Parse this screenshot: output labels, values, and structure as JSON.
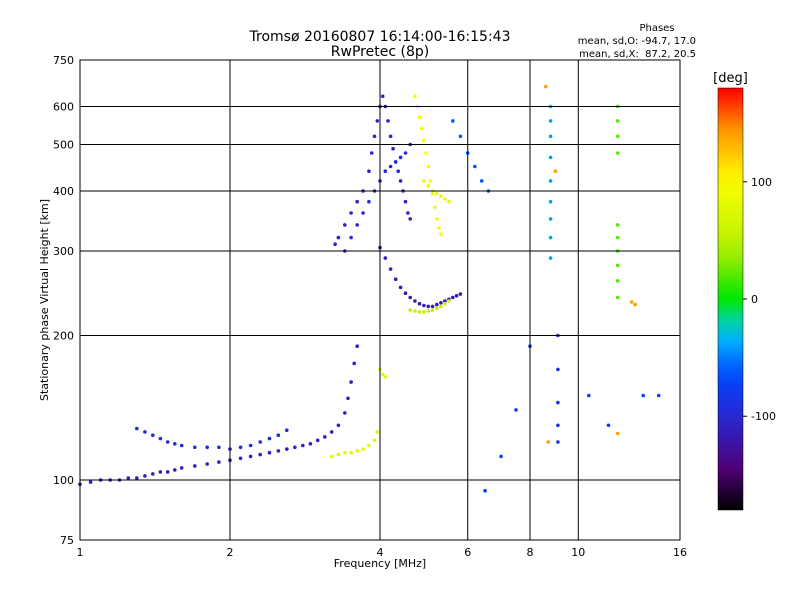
{
  "chart_data": {
    "type": "scatter",
    "title": "Tromsø 20160807 16:14:00-16:15:43",
    "subtitle": "RwPretec (8p)",
    "phase_box": {
      "heading": "Phases",
      "line1": "mean, sd,O: -94.7, 17.0",
      "line2": "mean, sd,X:  87.2, 20.5"
    },
    "xlabel": "Frequency [MHz]",
    "ylabel": "Stationary phase Virtual Height [km]",
    "x_scale": "log",
    "y_scale": "log",
    "xlim": [
      1,
      16
    ],
    "ylim": [
      75,
      750
    ],
    "x_ticks": [
      {
        "value": 1,
        "label": "1"
      },
      {
        "value": 2,
        "label": "2"
      },
      {
        "value": 4,
        "label": "4"
      },
      {
        "value": 6,
        "label": "6"
      },
      {
        "value": 8,
        "label": "8"
      },
      {
        "value": 10,
        "label": "10"
      },
      {
        "value": 16,
        "label": "16"
      }
    ],
    "y_ticks": [
      {
        "value": 75,
        "label": "75"
      },
      {
        "value": 100,
        "label": "100"
      },
      {
        "value": 200,
        "label": "200"
      },
      {
        "value": 300,
        "label": "300"
      },
      {
        "value": 400,
        "label": "400"
      },
      {
        "value": 500,
        "label": "500"
      },
      {
        "value": 600,
        "label": "600"
      },
      {
        "value": 750,
        "label": "750"
      }
    ],
    "grid": true,
    "colorbar": {
      "label": "[deg]",
      "range": [
        -180,
        180
      ],
      "ticks": [
        {
          "value": 100,
          "label": "100"
        },
        {
          "value": 0,
          "label": "0"
        },
        {
          "value": -100,
          "label": "-100"
        }
      ]
    },
    "traces": [
      {
        "name": "",
        "phase": -110,
        "points": [
          [
            1.0,
            98
          ],
          [
            1.05,
            99
          ],
          [
            1.1,
            100
          ],
          [
            1.15,
            100
          ],
          [
            1.2,
            100
          ],
          [
            1.25,
            101
          ],
          [
            1.3,
            101
          ],
          [
            1.35,
            102
          ],
          [
            1.4,
            103
          ],
          [
            1.45,
            104
          ],
          [
            1.5,
            104
          ],
          [
            1.55,
            105
          ],
          [
            1.6,
            106
          ],
          [
            1.7,
            107
          ],
          [
            1.8,
            108
          ],
          [
            1.9,
            109
          ],
          [
            2.0,
            110
          ],
          [
            2.1,
            111
          ],
          [
            2.2,
            112
          ],
          [
            2.3,
            113
          ],
          [
            2.4,
            114
          ],
          [
            2.5,
            115
          ],
          [
            2.6,
            116
          ],
          [
            2.7,
            117
          ],
          [
            2.8,
            118
          ],
          [
            2.9,
            119
          ],
          [
            3.0,
            121
          ],
          [
            3.1,
            123
          ],
          [
            3.2,
            126
          ],
          [
            3.3,
            130
          ],
          [
            3.4,
            138
          ],
          [
            3.45,
            148
          ],
          [
            3.5,
            160
          ],
          [
            3.55,
            175
          ],
          [
            3.6,
            190
          ]
        ]
      },
      {
        "name": "",
        "phase": -95,
        "points": [
          [
            1.3,
            128
          ],
          [
            1.35,
            126
          ],
          [
            1.4,
            124
          ],
          [
            1.45,
            122
          ],
          [
            1.5,
            120
          ],
          [
            1.55,
            119
          ],
          [
            1.6,
            118
          ],
          [
            1.7,
            117
          ],
          [
            1.8,
            117
          ],
          [
            1.9,
            117
          ],
          [
            2.0,
            116
          ],
          [
            2.1,
            117
          ],
          [
            2.2,
            118
          ],
          [
            2.3,
            120
          ],
          [
            2.4,
            122
          ],
          [
            2.5,
            124
          ],
          [
            2.6,
            127
          ]
        ]
      },
      {
        "name": "",
        "phase": 80,
        "points": [
          [
            3.2,
            112
          ],
          [
            3.3,
            113
          ],
          [
            3.4,
            114
          ],
          [
            3.5,
            114
          ],
          [
            3.6,
            115
          ],
          [
            3.7,
            116
          ],
          [
            3.8,
            118
          ],
          [
            3.9,
            121
          ],
          [
            3.95,
            126
          ],
          [
            4.0,
            170
          ],
          [
            4.05,
            166
          ],
          [
            4.1,
            164
          ]
        ]
      },
      {
        "name": "",
        "phase": -105,
        "points": [
          [
            3.25,
            310
          ],
          [
            3.3,
            320
          ],
          [
            3.4,
            340
          ],
          [
            3.5,
            360
          ],
          [
            3.6,
            380
          ],
          [
            3.7,
            400
          ],
          [
            3.8,
            440
          ],
          [
            3.85,
            480
          ],
          [
            3.9,
            520
          ],
          [
            3.95,
            560
          ],
          [
            4.0,
            600
          ],
          [
            4.05,
            630
          ],
          [
            4.1,
            600
          ],
          [
            4.15,
            560
          ],
          [
            4.2,
            520
          ],
          [
            4.25,
            490
          ],
          [
            4.3,
            460
          ],
          [
            4.35,
            440
          ],
          [
            4.4,
            420
          ],
          [
            4.45,
            400
          ],
          [
            4.5,
            380
          ],
          [
            4.55,
            360
          ],
          [
            4.6,
            350
          ]
        ]
      },
      {
        "name": "",
        "phase": -100,
        "points": [
          [
            3.4,
            300
          ],
          [
            3.5,
            320
          ],
          [
            3.6,
            340
          ],
          [
            3.7,
            360
          ],
          [
            3.8,
            380
          ],
          [
            3.9,
            400
          ],
          [
            4.0,
            420
          ],
          [
            4.1,
            440
          ],
          [
            4.2,
            450
          ],
          [
            4.3,
            460
          ],
          [
            4.4,
            470
          ],
          [
            4.5,
            480
          ],
          [
            4.6,
            500
          ]
        ]
      },
      {
        "name": "",
        "phase": -115,
        "points": [
          [
            4.0,
            305
          ],
          [
            4.1,
            290
          ],
          [
            4.2,
            275
          ],
          [
            4.3,
            262
          ],
          [
            4.4,
            252
          ],
          [
            4.5,
            245
          ],
          [
            4.6,
            240
          ],
          [
            4.7,
            236
          ],
          [
            4.8,
            233
          ],
          [
            4.9,
            231
          ],
          [
            5.0,
            230
          ],
          [
            5.1,
            230
          ],
          [
            5.2,
            232
          ],
          [
            5.3,
            234
          ],
          [
            5.4,
            236
          ],
          [
            5.5,
            238
          ],
          [
            5.6,
            240
          ],
          [
            5.7,
            242
          ],
          [
            5.8,
            244
          ]
        ]
      },
      {
        "name": "",
        "phase": 55,
        "points": [
          [
            4.6,
            226
          ],
          [
            4.7,
            225
          ],
          [
            4.8,
            224
          ],
          [
            4.9,
            224
          ],
          [
            5.0,
            225
          ],
          [
            5.1,
            226
          ],
          [
            5.2,
            228
          ],
          [
            5.3,
            230
          ],
          [
            5.4,
            233
          ],
          [
            5.5,
            236
          ]
        ]
      },
      {
        "name": "",
        "phase": 95,
        "points": [
          [
            4.7,
            630
          ],
          [
            4.75,
            600
          ],
          [
            4.8,
            570
          ],
          [
            4.85,
            540
          ],
          [
            4.9,
            510
          ],
          [
            4.95,
            480
          ],
          [
            5.0,
            450
          ],
          [
            5.05,
            420
          ],
          [
            5.1,
            395
          ],
          [
            5.15,
            370
          ],
          [
            5.2,
            350
          ],
          [
            5.25,
            335
          ],
          [
            5.3,
            325
          ]
        ]
      },
      {
        "name": "",
        "phase": 85,
        "points": [
          [
            4.9,
            420
          ],
          [
            5.0,
            410
          ],
          [
            5.1,
            400
          ],
          [
            5.2,
            395
          ],
          [
            5.3,
            390
          ],
          [
            5.4,
            385
          ],
          [
            5.5,
            380
          ]
        ]
      },
      {
        "name": "",
        "phase": -60,
        "points": [
          [
            5.6,
            560
          ],
          [
            5.8,
            520
          ],
          [
            6.0,
            480
          ],
          [
            6.2,
            450
          ],
          [
            6.4,
            420
          ],
          [
            6.6,
            400
          ]
        ]
      },
      {
        "name": "",
        "phase": -40,
        "points": [
          [
            8.8,
            600
          ],
          [
            8.8,
            560
          ],
          [
            8.8,
            520
          ],
          [
            8.8,
            470
          ],
          [
            8.8,
            420
          ],
          [
            8.8,
            380
          ],
          [
            8.8,
            350
          ],
          [
            8.8,
            320
          ],
          [
            8.8,
            290
          ]
        ]
      },
      {
        "name": "",
        "phase": -90,
        "points": [
          [
            9.1,
            200
          ],
          [
            9.1,
            170
          ],
          [
            9.1,
            145
          ],
          [
            9.1,
            130
          ],
          [
            9.1,
            120
          ]
        ]
      },
      {
        "name": "",
        "phase": 20,
        "points": [
          [
            12.0,
            600
          ],
          [
            12.0,
            560
          ],
          [
            12.0,
            520
          ],
          [
            12.0,
            480
          ],
          [
            12.0,
            340
          ],
          [
            12.0,
            320
          ],
          [
            12.0,
            300
          ],
          [
            12.0,
            280
          ],
          [
            12.0,
            260
          ],
          [
            12.0,
            240
          ]
        ]
      },
      {
        "name": "",
        "phase": -75,
        "points": [
          [
            6.5,
            95
          ],
          [
            7.0,
            112
          ],
          [
            7.5,
            140
          ],
          [
            8.0,
            190
          ],
          [
            10.5,
            150
          ],
          [
            11.5,
            130
          ],
          [
            13.5,
            150
          ],
          [
            14.5,
            150
          ]
        ]
      },
      {
        "name": "",
        "phase": 140,
        "points": [
          [
            8.6,
            660
          ],
          [
            9.0,
            440
          ],
          [
            12.8,
            235
          ],
          [
            13.0,
            232
          ],
          [
            8.7,
            120
          ],
          [
            12.0,
            125
          ]
        ]
      }
    ]
  }
}
